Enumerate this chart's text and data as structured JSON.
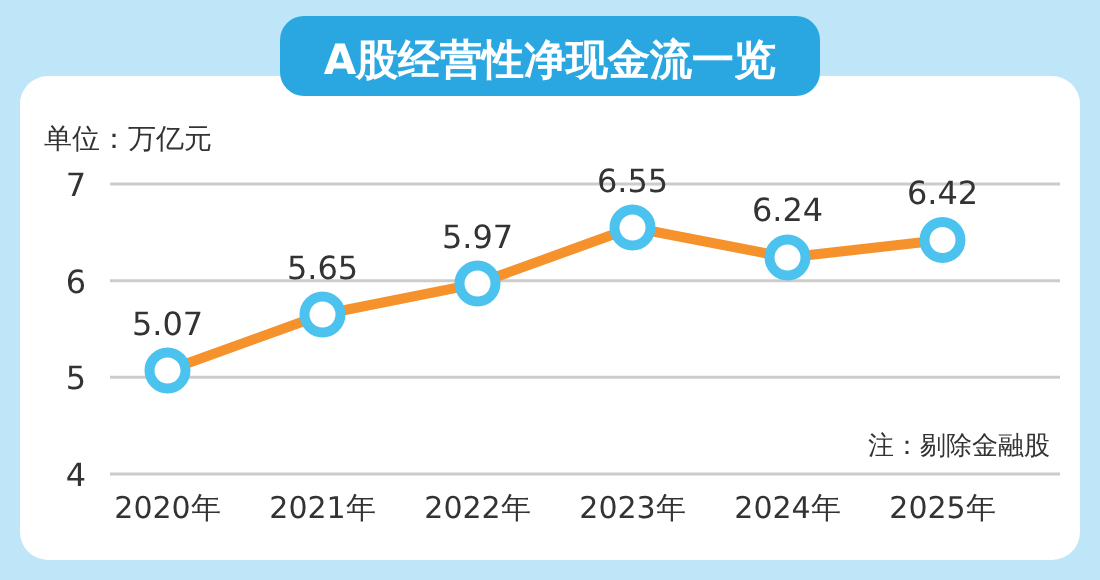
{
  "chart_data": {
    "type": "line",
    "title": "A股经营性净现金流一览",
    "ylabel": "单位：万亿元",
    "categories": [
      "2020年",
      "2021年",
      "2022年",
      "2023年",
      "2024年",
      "2025年"
    ],
    "series": [
      {
        "color": "#f5922b",
        "values": [
          5.07,
          5.65,
          5.97,
          6.55,
          6.24,
          6.42
        ]
      }
    ],
    "ylim": [
      4,
      7
    ],
    "yticks": [
      4,
      5,
      6,
      7
    ],
    "grid": "y",
    "marker": "circle",
    "data_labels": true,
    "annotations": [
      "注：剔除金融股"
    ]
  }
}
